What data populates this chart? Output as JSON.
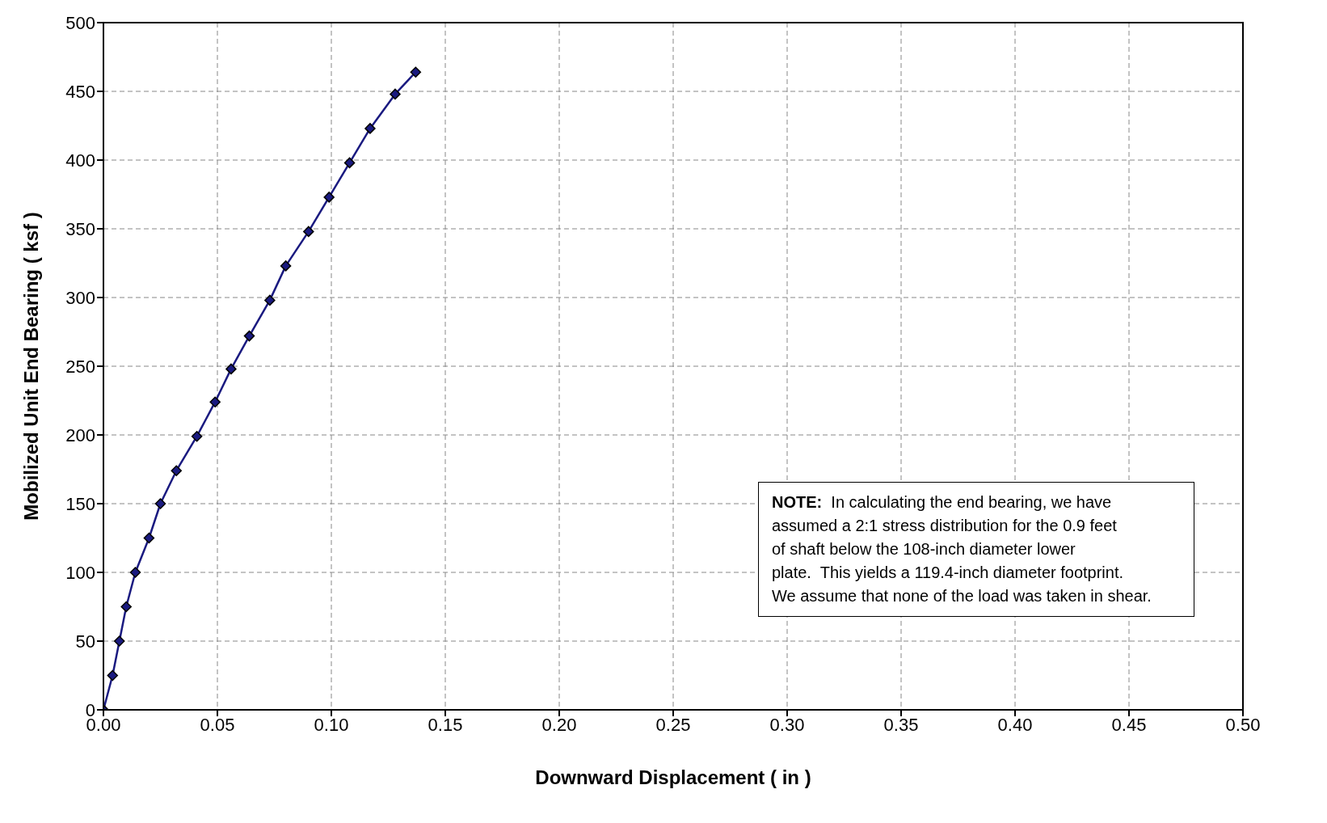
{
  "chart_data": {
    "type": "line",
    "xlabel": "Downward Displacement  ( in )",
    "ylabel": "Mobilized Unit End Bearing  ( ksf )",
    "x": [
      0,
      0.004,
      0.007,
      0.01,
      0.014,
      0.02,
      0.025,
      0.032,
      0.041,
      0.049,
      0.056,
      0.064,
      0.073,
      0.08,
      0.09,
      0.099,
      0.108,
      0.117,
      0.128,
      0.137
    ],
    "series": [
      {
        "color": "#1a1a80",
        "values": [
          0,
          25,
          50,
          75,
          100,
          125,
          150,
          174,
          199,
          224,
          248,
          272,
          298,
          323,
          348,
          373,
          398,
          423,
          448,
          464
        ]
      }
    ],
    "xlim": [
      0,
      0.5
    ],
    "xticks": [
      {
        "value": 0,
        "label": "0.00"
      },
      {
        "value": 0.05,
        "label": "0.05"
      },
      {
        "value": 0.1,
        "label": "0.10"
      },
      {
        "value": 0.15,
        "label": "0.15"
      },
      {
        "value": 0.2,
        "label": "0.20"
      },
      {
        "value": 0.25,
        "label": "0.25"
      },
      {
        "value": 0.3,
        "label": "0.30"
      },
      {
        "value": 0.35,
        "label": "0.35"
      },
      {
        "value": 0.4,
        "label": "0.40"
      },
      {
        "value": 0.45,
        "label": "0.45"
      },
      {
        "value": 0.5,
        "label": "0.50"
      }
    ],
    "ylim": [
      0,
      500
    ],
    "yticks": [
      0,
      50,
      100,
      150,
      200,
      250,
      300,
      350,
      400,
      450,
      500
    ],
    "grid": true,
    "marker": "diamond",
    "line_style": "solid",
    "annotations": [
      "NOTE:  In calculating the end bearing, we have\nassumed a 2:1 stress distribution for the 0.9 feet\nof shaft below the 108-inch diameter lower\nplate.  This yields a 119.4-inch diameter footprint.\nWe assume that none of the load was taken in shear."
    ]
  }
}
